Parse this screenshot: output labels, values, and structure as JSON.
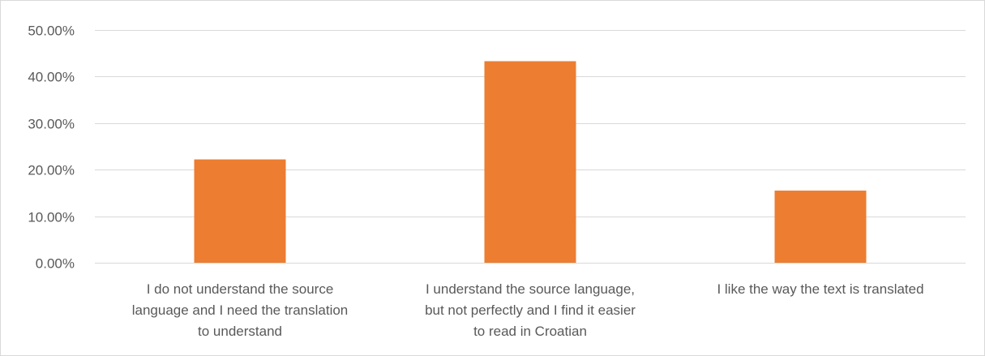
{
  "chart_data": {
    "type": "bar",
    "categories": [
      [
        "I do not understand the source",
        "language and I need the translation",
        "to understand"
      ],
      [
        "I understand the source language,",
        "but not perfectly and I find it easier",
        "to read in Croatian"
      ],
      [
        "I like the way the text is translated"
      ]
    ],
    "values": [
      0.222,
      0.433,
      0.155
    ],
    "ylim": [
      0,
      0.5
    ],
    "yticks": [
      0,
      0.1,
      0.2,
      0.3,
      0.4,
      0.5
    ],
    "ytick_labels": [
      "0.00%",
      "10.00%",
      "20.00%",
      "30.00%",
      "40.00%",
      "50.00%"
    ],
    "grid": true,
    "legend": "none",
    "title": "",
    "xlabel": "",
    "ylabel": "",
    "colors": {
      "bar": "#ED7D31",
      "grid": "#d9d9d9",
      "text": "#595959"
    }
  }
}
